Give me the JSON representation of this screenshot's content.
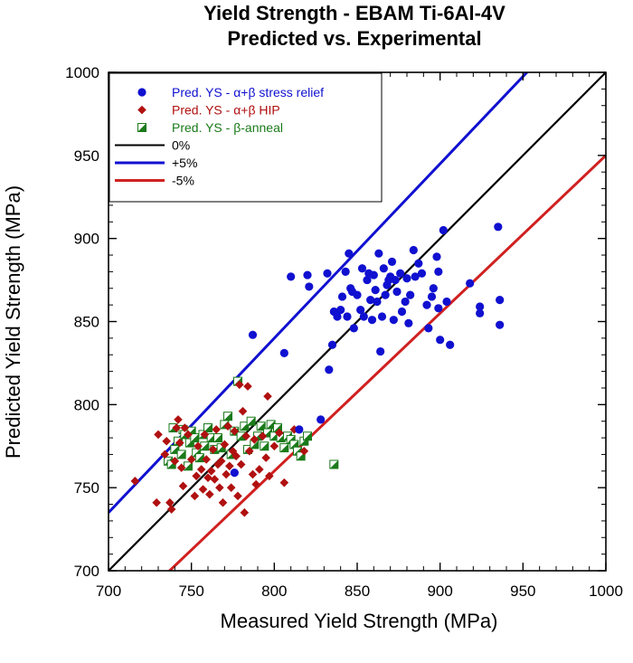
{
  "chart_data": {
    "type": "scatter",
    "title": "Yield Strength - EBAM Ti-6Al-4V",
    "subtitle": "Predicted vs. Experimental",
    "xlabel": "Measured Yield Strength (MPa)",
    "ylabel": "Predicted Yield Strength (MPa)",
    "xlim": [
      700,
      1000
    ],
    "ylim": [
      700,
      1000
    ],
    "x_ticks": [
      "700",
      "750",
      "800",
      "850",
      "900",
      "950",
      "1000"
    ],
    "y_ticks": [
      "700",
      "750",
      "800",
      "850",
      "900",
      "950",
      "1000"
    ],
    "grid": false,
    "legend_position": "top-left",
    "series": [
      {
        "name": "Pred. YS - α+β stress relief",
        "marker": "circle",
        "color": "#1010d0",
        "points": [
          [
            776,
            759
          ],
          [
            787,
            842
          ],
          [
            806,
            831
          ],
          [
            810,
            877
          ],
          [
            815,
            785
          ],
          [
            820,
            878
          ],
          [
            821,
            871
          ],
          [
            828,
            791
          ],
          [
            832,
            879
          ],
          [
            833,
            821
          ],
          [
            835,
            836
          ],
          [
            836,
            856
          ],
          [
            838,
            853
          ],
          [
            840,
            857
          ],
          [
            841,
            865
          ],
          [
            843,
            880
          ],
          [
            844,
            853
          ],
          [
            845,
            891
          ],
          [
            846,
            870
          ],
          [
            847,
            868
          ],
          [
            848,
            846
          ],
          [
            850,
            866
          ],
          [
            852,
            857
          ],
          [
            853,
            882
          ],
          [
            854,
            853
          ],
          [
            856,
            875
          ],
          [
            857,
            879
          ],
          [
            858,
            863
          ],
          [
            859,
            851
          ],
          [
            860,
            878
          ],
          [
            861,
            869
          ],
          [
            862,
            862
          ],
          [
            863,
            891
          ],
          [
            864,
            832
          ],
          [
            865,
            853
          ],
          [
            866,
            882
          ],
          [
            867,
            866
          ],
          [
            868,
            872
          ],
          [
            869,
            875
          ],
          [
            870,
            877
          ],
          [
            871,
            886
          ],
          [
            872,
            851
          ],
          [
            873,
            875
          ],
          [
            874,
            868
          ],
          [
            876,
            879
          ],
          [
            877,
            856
          ],
          [
            879,
            862
          ],
          [
            880,
            876
          ],
          [
            881,
            849
          ],
          [
            882,
            866
          ],
          [
            884,
            893
          ],
          [
            885,
            877
          ],
          [
            887,
            885
          ],
          [
            889,
            879
          ],
          [
            892,
            860
          ],
          [
            893,
            846
          ],
          [
            895,
            865
          ],
          [
            896,
            870
          ],
          [
            898,
            889
          ],
          [
            899,
            880
          ],
          [
            899,
            858
          ],
          [
            900,
            839
          ],
          [
            902,
            905
          ],
          [
            904,
            862
          ],
          [
            906,
            836
          ],
          [
            918,
            873
          ],
          [
            924,
            859
          ],
          [
            924,
            855
          ],
          [
            935,
            907
          ],
          [
            936,
            863
          ],
          [
            936,
            848
          ]
        ]
      },
      {
        "name": "Pred. YS - α+β HIP",
        "marker": "diamond",
        "color": "#b01010",
        "points": [
          [
            716,
            754
          ],
          [
            729,
            741
          ],
          [
            730,
            782
          ],
          [
            734,
            770
          ],
          [
            735,
            778
          ],
          [
            737,
            741
          ],
          [
            738,
            737
          ],
          [
            740,
            766
          ],
          [
            741,
            786
          ],
          [
            742,
            791
          ],
          [
            743,
            777
          ],
          [
            744,
            762
          ],
          [
            745,
            751
          ],
          [
            746,
            786
          ],
          [
            748,
            782
          ],
          [
            750,
            767
          ],
          [
            752,
            745
          ],
          [
            753,
            757
          ],
          [
            754,
            775
          ],
          [
            756,
            761
          ],
          [
            757,
            749
          ],
          [
            758,
            782
          ],
          [
            759,
            767
          ],
          [
            760,
            756
          ],
          [
            761,
            746
          ],
          [
            762,
            760
          ],
          [
            763,
            773
          ],
          [
            764,
            755
          ],
          [
            765,
            785
          ],
          [
            766,
            764
          ],
          [
            767,
            750
          ],
          [
            768,
            766
          ],
          [
            769,
            741
          ],
          [
            770,
            776
          ],
          [
            771,
            758
          ],
          [
            772,
            787
          ],
          [
            773,
            763
          ],
          [
            774,
            750
          ],
          [
            775,
            772
          ],
          [
            776,
            784
          ],
          [
            777,
            769
          ],
          [
            778,
            745
          ],
          [
            779,
            812
          ],
          [
            780,
            764
          ],
          [
            781,
            796
          ],
          [
            782,
            735
          ],
          [
            783,
            781
          ],
          [
            784,
            811
          ],
          [
            785,
            772
          ],
          [
            787,
            758
          ],
          [
            788,
            779
          ],
          [
            789,
            752
          ],
          [
            791,
            761
          ],
          [
            793,
            781
          ],
          [
            795,
            768
          ],
          [
            796,
            805
          ],
          [
            797,
            757
          ],
          [
            800,
            775
          ],
          [
            803,
            783
          ],
          [
            806,
            753
          ],
          [
            812,
            785
          ],
          [
            818,
            772
          ]
        ]
      },
      {
        "name": "Pred. YS - β-anneal",
        "marker": "half-square",
        "color": "#1a7a1a",
        "points": [
          [
            736,
            766
          ],
          [
            738,
            764
          ],
          [
            739,
            786
          ],
          [
            740,
            773
          ],
          [
            742,
            778
          ],
          [
            744,
            770
          ],
          [
            745,
            785
          ],
          [
            746,
            782
          ],
          [
            748,
            763
          ],
          [
            749,
            777
          ],
          [
            750,
            784
          ],
          [
            752,
            780
          ],
          [
            753,
            771
          ],
          [
            755,
            768
          ],
          [
            757,
            782
          ],
          [
            758,
            775
          ],
          [
            760,
            786
          ],
          [
            762,
            780
          ],
          [
            764,
            773
          ],
          [
            766,
            780
          ],
          [
            768,
            774
          ],
          [
            770,
            788
          ],
          [
            772,
            793
          ],
          [
            774,
            770
          ],
          [
            776,
            784
          ],
          [
            778,
            814
          ],
          [
            780,
            781
          ],
          [
            782,
            787
          ],
          [
            784,
            773
          ],
          [
            786,
            790
          ],
          [
            788,
            776
          ],
          [
            790,
            781
          ],
          [
            792,
            787
          ],
          [
            794,
            775
          ],
          [
            796,
            783
          ],
          [
            798,
            788
          ],
          [
            800,
            781
          ],
          [
            802,
            786
          ],
          [
            804,
            780
          ],
          [
            806,
            774
          ],
          [
            808,
            781
          ],
          [
            810,
            779
          ],
          [
            812,
            776
          ],
          [
            814,
            772
          ],
          [
            816,
            769
          ],
          [
            818,
            778
          ],
          [
            820,
            781
          ],
          [
            836,
            764
          ]
        ]
      },
      {
        "name": "0%",
        "marker": "line",
        "color": "#000000",
        "factor": 1.0
      },
      {
        "name": "+5%",
        "marker": "line",
        "color": "#1010d0",
        "factor": 1.05
      },
      {
        "name": "-5%",
        "marker": "line",
        "color": "#d02020",
        "factor": 0.95
      }
    ]
  }
}
